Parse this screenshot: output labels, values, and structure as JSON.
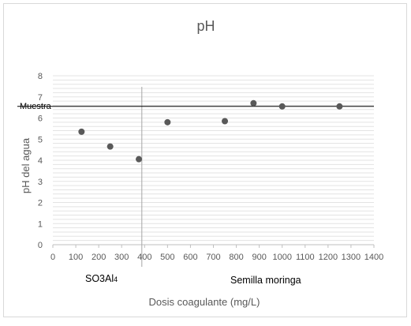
{
  "chart_data": {
    "type": "scatter",
    "title": "pH",
    "xlabel": "Dosis coagulante (mg/L)",
    "ylabel": "pH del agua",
    "xlim": [
      0,
      1400
    ],
    "ylim": [
      0,
      8
    ],
    "x_ticks": [
      0,
      100,
      200,
      300,
      400,
      500,
      600,
      700,
      800,
      900,
      1000,
      1100,
      1200,
      1300,
      1400
    ],
    "y_ticks": [
      0,
      1,
      2,
      3,
      4,
      5,
      6,
      7,
      8
    ],
    "grid": "horizontal minor gridlines",
    "series": [
      {
        "x": [
          125,
          250,
          375,
          500,
          750,
          875,
          1000,
          1250
        ],
        "y": [
          5.35,
          4.65,
          4.05,
          5.8,
          5.85,
          6.7,
          6.55,
          6.55
        ],
        "color": "#595959"
      }
    ],
    "reference_line": {
      "label": "Muestra",
      "y": 6.55
    },
    "divider": {
      "x": 388
    },
    "group_labels": [
      {
        "text_main": "SO3Al",
        "text_sub": "4"
      },
      {
        "text_main": "Semilla moringa"
      }
    ],
    "colors": {
      "border": "#d9d9d9",
      "grid": "#e3e3e3",
      "axis": "#bfbfbf",
      "text": "#595959",
      "marker": "#595959"
    }
  }
}
